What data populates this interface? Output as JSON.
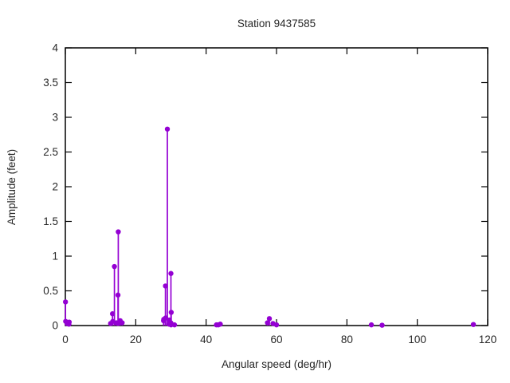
{
  "chart_data": {
    "type": "scatter",
    "style": "impulses-with-points",
    "title": "Station 9437585",
    "xlabel": "Angular speed (deg/hr)",
    "ylabel": "Amplitude (feet)",
    "xlim": [
      0,
      120
    ],
    "ylim": [
      0,
      4
    ],
    "x_ticks": [
      0,
      20,
      40,
      60,
      80,
      100,
      120
    ],
    "x_tick_labels": [
      "0",
      "20",
      "40",
      "60",
      "80",
      "100",
      "120"
    ],
    "y_ticks": [
      0,
      0.5,
      1,
      1.5,
      2,
      2.5,
      3,
      3.5,
      4
    ],
    "y_tick_labels": [
      "0",
      "0.5",
      "1",
      "1.5",
      "2",
      "2.5",
      "3",
      "3.5",
      "4"
    ],
    "grid": false,
    "legend": "none",
    "series_color": "#9400d3",
    "border_color": "#000000",
    "points": [
      {
        "x": 0.041,
        "y": 0.34
      },
      {
        "x": 0.082,
        "y": 0.06
      },
      {
        "x": 0.544,
        "y": 0.03
      },
      {
        "x": 1.016,
        "y": 0.02
      },
      {
        "x": 1.098,
        "y": 0.05
      },
      {
        "x": 12.854,
        "y": 0.03
      },
      {
        "x": 13.399,
        "y": 0.17
      },
      {
        "x": 13.472,
        "y": 0.06
      },
      {
        "x": 13.943,
        "y": 0.85
      },
      {
        "x": 14.497,
        "y": 0.04
      },
      {
        "x": 14.959,
        "y": 0.44
      },
      {
        "x": 15.0,
        "y": 0.03
      },
      {
        "x": 15.041,
        "y": 1.35
      },
      {
        "x": 15.585,
        "y": 0.07
      },
      {
        "x": 16.139,
        "y": 0.04
      },
      {
        "x": 27.895,
        "y": 0.07
      },
      {
        "x": 27.968,
        "y": 0.09
      },
      {
        "x": 28.44,
        "y": 0.57
      },
      {
        "x": 28.513,
        "y": 0.11
      },
      {
        "x": 28.984,
        "y": 2.83
      },
      {
        "x": 29.456,
        "y": 0.02
      },
      {
        "x": 29.528,
        "y": 0.08
      },
      {
        "x": 29.959,
        "y": 0.04
      },
      {
        "x": 30.0,
        "y": 0.75
      },
      {
        "x": 30.041,
        "y": 0.01
      },
      {
        "x": 30.082,
        "y": 0.19
      },
      {
        "x": 31.016,
        "y": 0.01
      },
      {
        "x": 42.927,
        "y": 0.01
      },
      {
        "x": 43.476,
        "y": 0.01
      },
      {
        "x": 44.025,
        "y": 0.02
      },
      {
        "x": 57.424,
        "y": 0.04
      },
      {
        "x": 57.968,
        "y": 0.1
      },
      {
        "x": 58.984,
        "y": 0.03
      },
      {
        "x": 60.0,
        "y": 0.01
      },
      {
        "x": 86.952,
        "y": 0.01
      },
      {
        "x": 90.0,
        "y": 0.005
      },
      {
        "x": 115.936,
        "y": 0.015
      }
    ]
  }
}
